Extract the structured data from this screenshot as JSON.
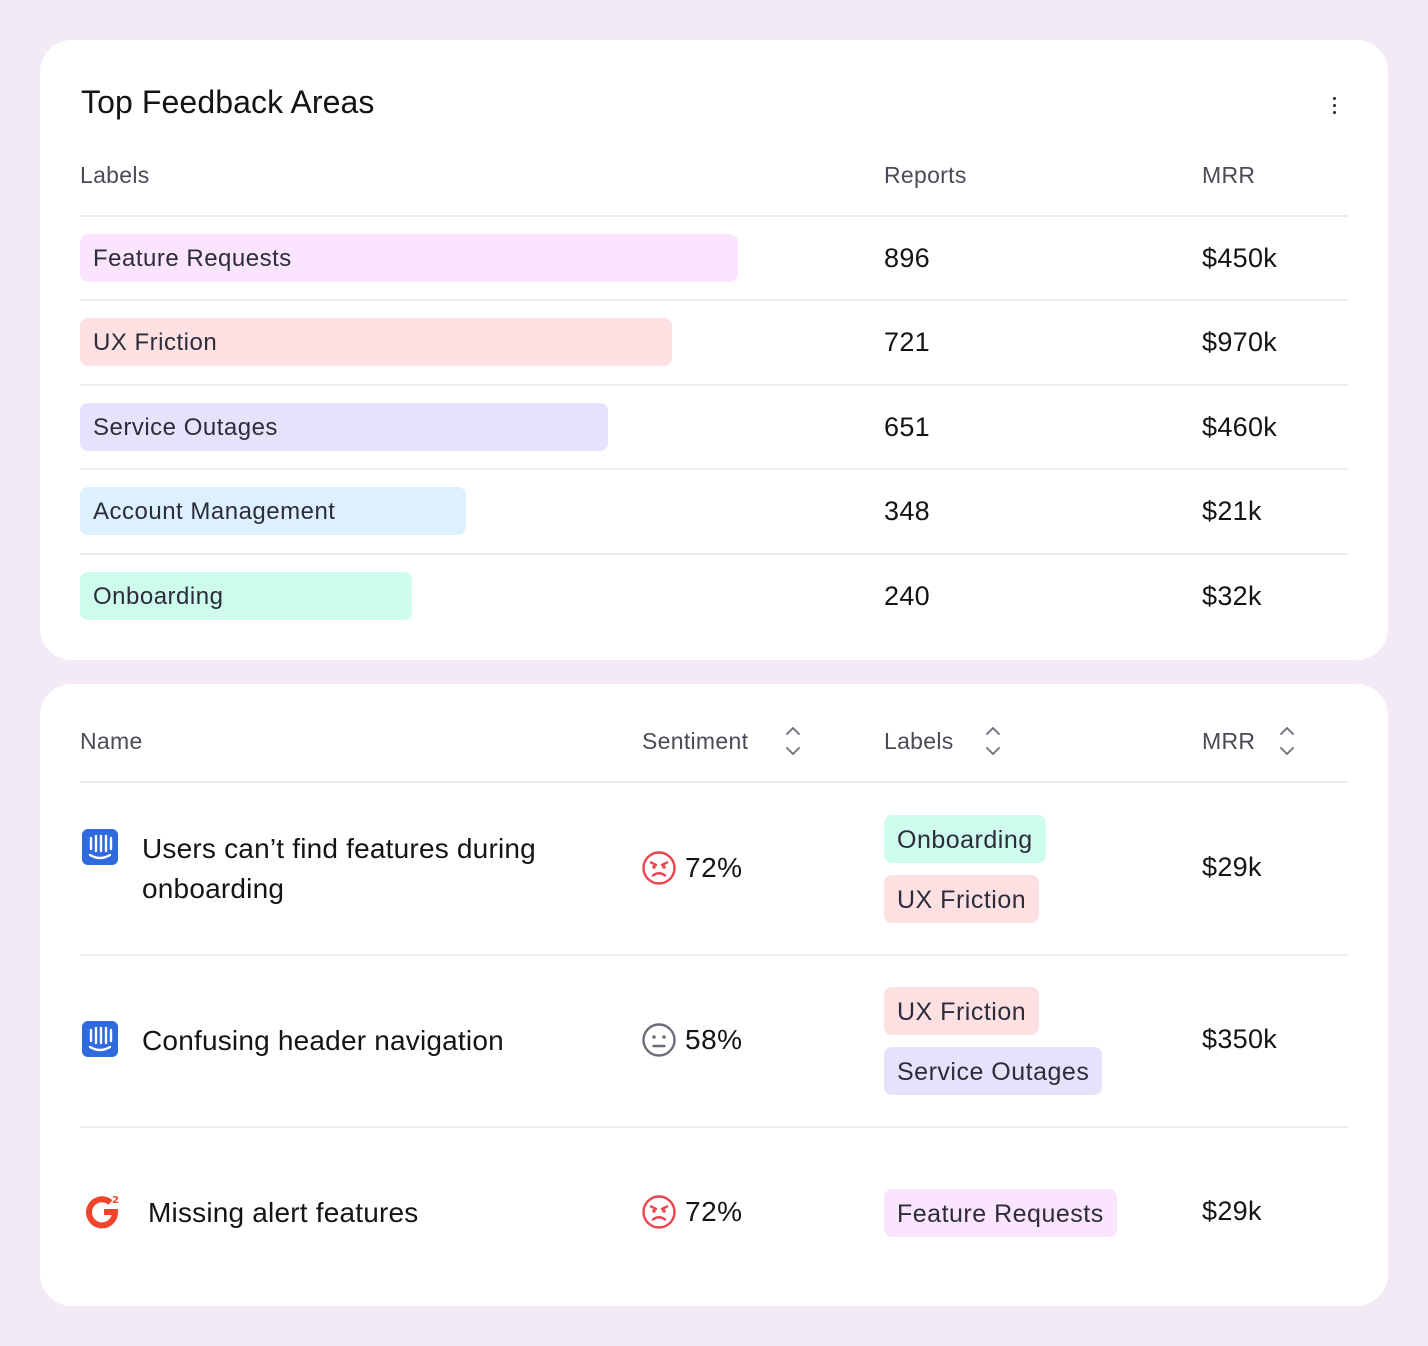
{
  "feedback_areas": {
    "title": "Top Feedback Areas",
    "columns": {
      "labels": "Labels",
      "reports": "Reports",
      "mrr": "MRR"
    },
    "rows": [
      {
        "label": "Feature Requests",
        "reports": "896",
        "mrr": "$450k",
        "color": "#fbe4fd"
      },
      {
        "label": "UX Friction",
        "reports": "721",
        "mrr": "$970k",
        "color": "#fde0e2"
      },
      {
        "label": "Service Outages",
        "reports": "651",
        "mrr": "$460k",
        "color": "#e7e2fc"
      },
      {
        "label": "Account Management",
        "reports": "348",
        "mrr": "$21k",
        "color": "#dcf1fd"
      },
      {
        "label": "Onboarding",
        "reports": "240",
        "mrr": "$32k",
        "color": "#cdfbec"
      }
    ]
  },
  "feedback_table": {
    "columns": {
      "name": "Name",
      "sentiment": "Sentiment",
      "labels": "Labels",
      "mrr": "MRR"
    },
    "rows": [
      {
        "source_icon": "intercom-icon",
        "name": "Users can’t find features during onboarding",
        "sentiment_icon": "angry-face-icon",
        "sentiment": "72%",
        "labels": [
          "Onboarding",
          "UX Friction"
        ],
        "mrr": "$29k"
      },
      {
        "source_icon": "intercom-icon",
        "name": "Confusing header navigation",
        "sentiment_icon": "neutral-face-icon",
        "sentiment": "58%",
        "labels": [
          "UX Friction",
          "Service Outages"
        ],
        "mrr": "$350k"
      },
      {
        "source_icon": "g2-icon",
        "name": "Missing alert features",
        "sentiment_icon": "angry-face-icon",
        "sentiment": "72%",
        "labels": [
          "Feature Requests"
        ],
        "mrr": "$29k"
      }
    ]
  },
  "colors": {
    "background": "#f2ebf6",
    "card": "#ffffff",
    "angry": "#e8454e",
    "neutral": "#6b6e7a",
    "intercom": "#2f6bdc",
    "g2": "#f0442c"
  }
}
